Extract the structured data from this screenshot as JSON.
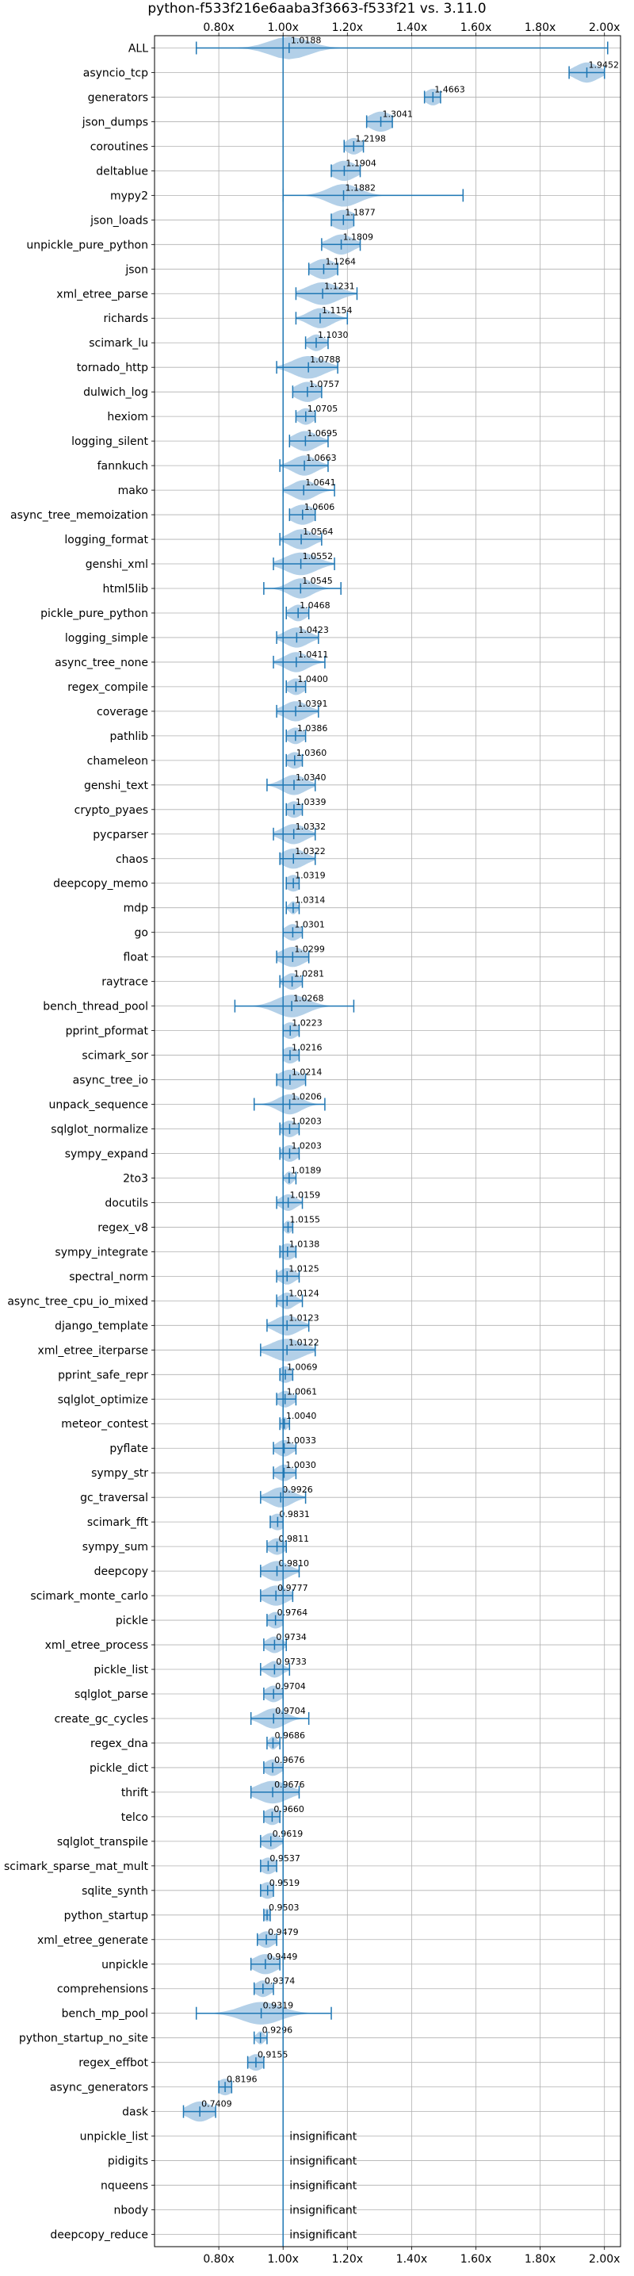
{
  "chart_data": {
    "type": "violin",
    "title": "python-f533f216e6aaba3f3663-f533f21 vs. 3.11.0",
    "xlim": [
      0.6,
      2.05
    ],
    "x_ticks": [
      0.8,
      1.0,
      1.2,
      1.4,
      1.6,
      1.8,
      2.0
    ],
    "x_tick_labels": [
      "0.80x",
      "1.00x",
      "1.20x",
      "1.40x",
      "1.60x",
      "1.80x",
      "2.00x"
    ],
    "reference_line": 1.0,
    "color": "#1f77b4",
    "violin_color": "#a6c8e4",
    "grid": true,
    "benchmarks": [
      {
        "name": "ALL",
        "mean": 1.0188,
        "label": "1.0188",
        "min": 0.73,
        "max": 2.01,
        "spread": 0.05
      },
      {
        "name": "asyncio_tcp",
        "mean": 1.9452,
        "label": "1.9452",
        "min": 1.89,
        "max": 2.0,
        "spread": 0.03
      },
      {
        "name": "generators",
        "mean": 1.4663,
        "label": "1.4663",
        "min": 1.44,
        "max": 1.49,
        "spread": 0.02
      },
      {
        "name": "json_dumps",
        "mean": 1.3041,
        "label": "1.3041",
        "min": 1.26,
        "max": 1.34,
        "spread": 0.03
      },
      {
        "name": "coroutines",
        "mean": 1.2198,
        "label": "1.2198",
        "min": 1.19,
        "max": 1.25,
        "spread": 0.02
      },
      {
        "name": "deltablue",
        "mean": 1.1904,
        "label": "1.1904",
        "min": 1.15,
        "max": 1.24,
        "spread": 0.03
      },
      {
        "name": "mypy2",
        "mean": 1.1882,
        "label": "1.1882",
        "min": 1.0,
        "max": 1.56,
        "spread": 0.04
      },
      {
        "name": "json_loads",
        "mean": 1.1877,
        "label": "1.1877",
        "min": 1.15,
        "max": 1.22,
        "spread": 0.03
      },
      {
        "name": "unpickle_pure_python",
        "mean": 1.1809,
        "label": "1.1809",
        "min": 1.12,
        "max": 1.24,
        "spread": 0.03
      },
      {
        "name": "json",
        "mean": 1.1264,
        "label": "1.1264",
        "min": 1.08,
        "max": 1.17,
        "spread": 0.03
      },
      {
        "name": "xml_etree_parse",
        "mean": 1.1231,
        "label": "1.1231",
        "min": 1.04,
        "max": 1.23,
        "spread": 0.04
      },
      {
        "name": "richards",
        "mean": 1.1154,
        "label": "1.1154",
        "min": 1.04,
        "max": 1.2,
        "spread": 0.03
      },
      {
        "name": "scimark_lu",
        "mean": 1.103,
        "label": "1.1030",
        "min": 1.07,
        "max": 1.14,
        "spread": 0.02
      },
      {
        "name": "tornado_http",
        "mean": 1.0788,
        "label": "1.0788",
        "min": 0.98,
        "max": 1.17,
        "spread": 0.04
      },
      {
        "name": "dulwich_log",
        "mean": 1.0757,
        "label": "1.0757",
        "min": 1.03,
        "max": 1.12,
        "spread": 0.03
      },
      {
        "name": "hexiom",
        "mean": 1.0705,
        "label": "1.0705",
        "min": 1.04,
        "max": 1.1,
        "spread": 0.02
      },
      {
        "name": "logging_silent",
        "mean": 1.0695,
        "label": "1.0695",
        "min": 1.02,
        "max": 1.14,
        "spread": 0.03
      },
      {
        "name": "fannkuch",
        "mean": 1.0663,
        "label": "1.0663",
        "min": 0.99,
        "max": 1.14,
        "spread": 0.03
      },
      {
        "name": "mako",
        "mean": 1.0641,
        "label": "1.0641",
        "min": 1.0,
        "max": 1.16,
        "spread": 0.03
      },
      {
        "name": "async_tree_memoization",
        "mean": 1.0606,
        "label": "1.0606",
        "min": 1.02,
        "max": 1.1,
        "spread": 0.03
      },
      {
        "name": "logging_format",
        "mean": 1.0564,
        "label": "1.0564",
        "min": 0.99,
        "max": 1.12,
        "spread": 0.03
      },
      {
        "name": "genshi_xml",
        "mean": 1.0552,
        "label": "1.0552",
        "min": 0.97,
        "max": 1.16,
        "spread": 0.04
      },
      {
        "name": "html5lib",
        "mean": 1.0545,
        "label": "1.0545",
        "min": 0.94,
        "max": 1.18,
        "spread": 0.03
      },
      {
        "name": "pickle_pure_python",
        "mean": 1.0468,
        "label": "1.0468",
        "min": 1.01,
        "max": 1.08,
        "spread": 0.02
      },
      {
        "name": "logging_simple",
        "mean": 1.0423,
        "label": "1.0423",
        "min": 0.98,
        "max": 1.11,
        "spread": 0.03
      },
      {
        "name": "async_tree_none",
        "mean": 1.0411,
        "label": "1.0411",
        "min": 0.97,
        "max": 1.13,
        "spread": 0.03
      },
      {
        "name": "regex_compile",
        "mean": 1.04,
        "label": "1.0400",
        "min": 1.01,
        "max": 1.07,
        "spread": 0.02
      },
      {
        "name": "coverage",
        "mean": 1.0391,
        "label": "1.0391",
        "min": 0.98,
        "max": 1.11,
        "spread": 0.03
      },
      {
        "name": "pathlib",
        "mean": 1.0386,
        "label": "1.0386",
        "min": 1.01,
        "max": 1.07,
        "spread": 0.02
      },
      {
        "name": "chameleon",
        "mean": 1.036,
        "label": "1.0360",
        "min": 1.01,
        "max": 1.06,
        "spread": 0.02
      },
      {
        "name": "genshi_text",
        "mean": 1.034,
        "label": "1.0340",
        "min": 0.95,
        "max": 1.1,
        "spread": 0.03
      },
      {
        "name": "crypto_pyaes",
        "mean": 1.0339,
        "label": "1.0339",
        "min": 1.01,
        "max": 1.06,
        "spread": 0.02
      },
      {
        "name": "pycparser",
        "mean": 1.0332,
        "label": "1.0332",
        "min": 0.97,
        "max": 1.1,
        "spread": 0.03
      },
      {
        "name": "chaos",
        "mean": 1.0322,
        "label": "1.0322",
        "min": 0.99,
        "max": 1.1,
        "spread": 0.03
      },
      {
        "name": "deepcopy_memo",
        "mean": 1.0319,
        "label": "1.0319",
        "min": 1.01,
        "max": 1.05,
        "spread": 0.02
      },
      {
        "name": "mdp",
        "mean": 1.0314,
        "label": "1.0314",
        "min": 1.01,
        "max": 1.05,
        "spread": 0.01
      },
      {
        "name": "go",
        "mean": 1.0301,
        "label": "1.0301",
        "min": 1.0,
        "max": 1.06,
        "spread": 0.02
      },
      {
        "name": "float",
        "mean": 1.0299,
        "label": "1.0299",
        "min": 0.98,
        "max": 1.08,
        "spread": 0.03
      },
      {
        "name": "raytrace",
        "mean": 1.0281,
        "label": "1.0281",
        "min": 0.99,
        "max": 1.06,
        "spread": 0.02
      },
      {
        "name": "bench_thread_pool",
        "mean": 1.0268,
        "label": "1.0268",
        "min": 0.85,
        "max": 1.22,
        "spread": 0.04
      },
      {
        "name": "pprint_pformat",
        "mean": 1.0223,
        "label": "1.0223",
        "min": 1.0,
        "max": 1.05,
        "spread": 0.02
      },
      {
        "name": "scimark_sor",
        "mean": 1.0216,
        "label": "1.0216",
        "min": 1.0,
        "max": 1.05,
        "spread": 0.02
      },
      {
        "name": "async_tree_io",
        "mean": 1.0214,
        "label": "1.0214",
        "min": 0.98,
        "max": 1.07,
        "spread": 0.03
      },
      {
        "name": "unpack_sequence",
        "mean": 1.0206,
        "label": "1.0206",
        "min": 0.91,
        "max": 1.13,
        "spread": 0.03
      },
      {
        "name": "sqlglot_normalize",
        "mean": 1.0203,
        "label": "1.0203",
        "min": 0.99,
        "max": 1.05,
        "spread": 0.02
      },
      {
        "name": "sympy_expand",
        "mean": 1.0203,
        "label": "1.0203",
        "min": 0.99,
        "max": 1.05,
        "spread": 0.02
      },
      {
        "name": "2to3",
        "mean": 1.0189,
        "label": "1.0189",
        "min": 1.0,
        "max": 1.04,
        "spread": 0.01
      },
      {
        "name": "docutils",
        "mean": 1.0159,
        "label": "1.0159",
        "min": 0.98,
        "max": 1.06,
        "spread": 0.02
      },
      {
        "name": "regex_v8",
        "mean": 1.0155,
        "label": "1.0155",
        "min": 1.0,
        "max": 1.03,
        "spread": 0.01
      },
      {
        "name": "sympy_integrate",
        "mean": 1.0138,
        "label": "1.0138",
        "min": 0.99,
        "max": 1.04,
        "spread": 0.02
      },
      {
        "name": "spectral_norm",
        "mean": 1.0125,
        "label": "1.0125",
        "min": 0.98,
        "max": 1.05,
        "spread": 0.02
      },
      {
        "name": "async_tree_cpu_io_mixed",
        "mean": 1.0124,
        "label": "1.0124",
        "min": 0.98,
        "max": 1.06,
        "spread": 0.02
      },
      {
        "name": "django_template",
        "mean": 1.0123,
        "label": "1.0123",
        "min": 0.95,
        "max": 1.08,
        "spread": 0.03
      },
      {
        "name": "xml_etree_iterparse",
        "mean": 1.0122,
        "label": "1.0122",
        "min": 0.93,
        "max": 1.1,
        "spread": 0.04
      },
      {
        "name": "pprint_safe_repr",
        "mean": 1.0069,
        "label": "1.0069",
        "min": 0.99,
        "max": 1.03,
        "spread": 0.02
      },
      {
        "name": "sqlglot_optimize",
        "mean": 1.0061,
        "label": "1.0061",
        "min": 0.98,
        "max": 1.04,
        "spread": 0.02
      },
      {
        "name": "meteor_contest",
        "mean": 1.004,
        "label": "1.0040",
        "min": 0.99,
        "max": 1.02,
        "spread": 0.01
      },
      {
        "name": "pyflate",
        "mean": 1.0033,
        "label": "1.0033",
        "min": 0.97,
        "max": 1.04,
        "spread": 0.02
      },
      {
        "name": "sympy_str",
        "mean": 1.003,
        "label": "1.0030",
        "min": 0.97,
        "max": 1.04,
        "spread": 0.02
      },
      {
        "name": "gc_traversal",
        "mean": 0.9926,
        "label": "0.9926",
        "min": 0.93,
        "max": 1.07,
        "spread": 0.03
      },
      {
        "name": "scimark_fft",
        "mean": 0.9831,
        "label": "0.9831",
        "min": 0.96,
        "max": 1.0,
        "spread": 0.02
      },
      {
        "name": "sympy_sum",
        "mean": 0.9811,
        "label": "0.9811",
        "min": 0.95,
        "max": 1.01,
        "spread": 0.02
      },
      {
        "name": "deepcopy",
        "mean": 0.981,
        "label": "0.9810",
        "min": 0.93,
        "max": 1.05,
        "spread": 0.03
      },
      {
        "name": "scimark_monte_carlo",
        "mean": 0.9777,
        "label": "0.9777",
        "min": 0.93,
        "max": 1.03,
        "spread": 0.03
      },
      {
        "name": "pickle",
        "mean": 0.9764,
        "label": "0.9764",
        "min": 0.95,
        "max": 1.0,
        "spread": 0.02
      },
      {
        "name": "xml_etree_process",
        "mean": 0.9734,
        "label": "0.9734",
        "min": 0.94,
        "max": 1.01,
        "spread": 0.02
      },
      {
        "name": "pickle_list",
        "mean": 0.9733,
        "label": "0.9733",
        "min": 0.93,
        "max": 1.02,
        "spread": 0.02
      },
      {
        "name": "sqlglot_parse",
        "mean": 0.9704,
        "label": "0.9704",
        "min": 0.94,
        "max": 1.0,
        "spread": 0.02
      },
      {
        "name": "create_gc_cycles",
        "mean": 0.9704,
        "label": "0.9704",
        "min": 0.9,
        "max": 1.08,
        "spread": 0.03
      },
      {
        "name": "regex_dna",
        "mean": 0.9686,
        "label": "0.9686",
        "min": 0.95,
        "max": 0.99,
        "spread": 0.01
      },
      {
        "name": "pickle_dict",
        "mean": 0.9676,
        "label": "0.9676",
        "min": 0.94,
        "max": 1.0,
        "spread": 0.02
      },
      {
        "name": "thrift",
        "mean": 0.9676,
        "label": "0.9676",
        "min": 0.9,
        "max": 1.05,
        "spread": 0.04
      },
      {
        "name": "telco",
        "mean": 0.966,
        "label": "0.9660",
        "min": 0.94,
        "max": 0.99,
        "spread": 0.02
      },
      {
        "name": "sqlglot_transpile",
        "mean": 0.9619,
        "label": "0.9619",
        "min": 0.93,
        "max": 1.0,
        "spread": 0.02
      },
      {
        "name": "scimark_sparse_mat_mult",
        "mean": 0.9537,
        "label": "0.9537",
        "min": 0.93,
        "max": 0.98,
        "spread": 0.02
      },
      {
        "name": "sqlite_synth",
        "mean": 0.9519,
        "label": "0.9519",
        "min": 0.93,
        "max": 0.97,
        "spread": 0.02
      },
      {
        "name": "python_startup",
        "mean": 0.9503,
        "label": "0.9503",
        "min": 0.94,
        "max": 0.96,
        "spread": 0.01
      },
      {
        "name": "xml_etree_generate",
        "mean": 0.9479,
        "label": "0.9479",
        "min": 0.92,
        "max": 0.98,
        "spread": 0.02
      },
      {
        "name": "unpickle",
        "mean": 0.9449,
        "label": "0.9449",
        "min": 0.9,
        "max": 0.99,
        "spread": 0.03
      },
      {
        "name": "comprehensions",
        "mean": 0.9374,
        "label": "0.9374",
        "min": 0.91,
        "max": 0.97,
        "spread": 0.02
      },
      {
        "name": "bench_mp_pool",
        "mean": 0.9319,
        "label": "0.9319",
        "min": 0.73,
        "max": 1.15,
        "spread": 0.05
      },
      {
        "name": "python_startup_no_site",
        "mean": 0.9296,
        "label": "0.9296",
        "min": 0.91,
        "max": 0.95,
        "spread": 0.01
      },
      {
        "name": "regex_effbot",
        "mean": 0.9155,
        "label": "0.9155",
        "min": 0.89,
        "max": 0.94,
        "spread": 0.02
      },
      {
        "name": "async_generators",
        "mean": 0.8196,
        "label": "0.8196",
        "min": 0.8,
        "max": 0.84,
        "spread": 0.02
      },
      {
        "name": "dask",
        "mean": 0.7409,
        "label": "0.7409",
        "min": 0.69,
        "max": 0.79,
        "spread": 0.03
      },
      {
        "name": "unpickle_list",
        "insignificant": true,
        "label": "insignificant"
      },
      {
        "name": "pidigits",
        "insignificant": true,
        "label": "insignificant"
      },
      {
        "name": "nqueens",
        "insignificant": true,
        "label": "insignificant"
      },
      {
        "name": "nbody",
        "insignificant": true,
        "label": "insignificant"
      },
      {
        "name": "deepcopy_reduce",
        "insignificant": true,
        "label": "insignificant"
      }
    ]
  }
}
